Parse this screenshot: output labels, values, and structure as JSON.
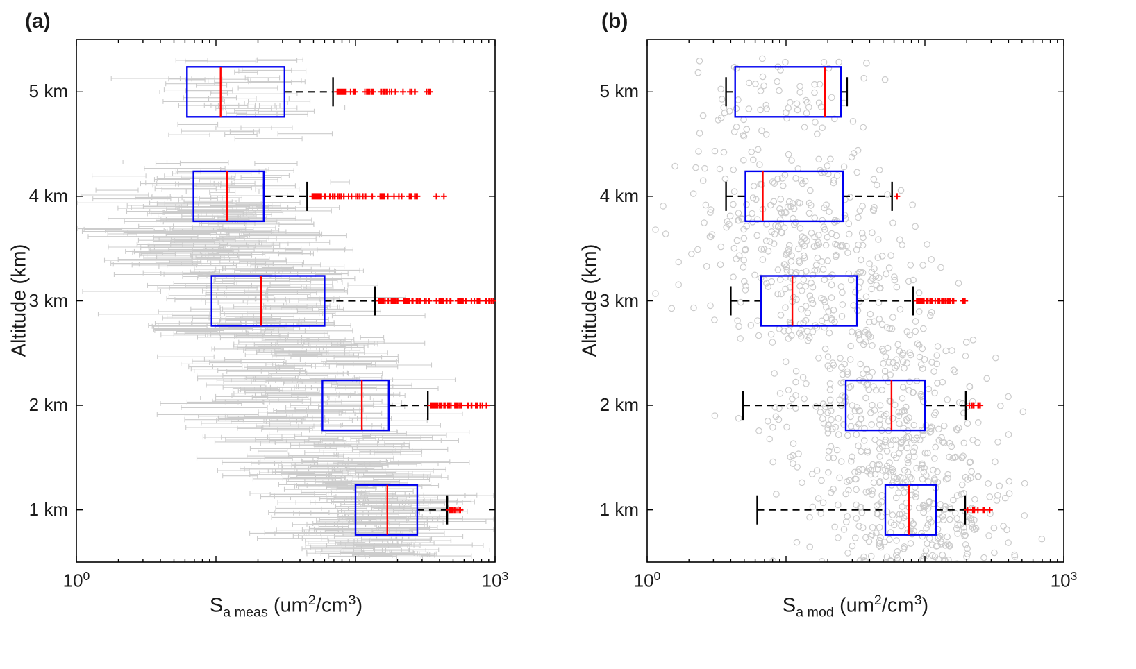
{
  "colors": {
    "box": "#0000f0",
    "median": "#ff0000",
    "whisker": "#000000",
    "outlier": "#ff0000",
    "axis": "#000000",
    "tick_text": "#262626",
    "scatter_a": "#cccccc",
    "scatter_b": "#cbcbcb",
    "background": "#ffffff"
  },
  "chart_data": [
    {
      "type": "boxplot",
      "orientation": "horizontal",
      "panel_label": "(a)",
      "xlabel_text": "S_a meas (um^2/cm^3)",
      "xlabel_parts": {
        "s": "S",
        "sub": "a meas",
        "unit1": " (um",
        "sup1": "2",
        "unit2": "/cm",
        "sup2": "3",
        "unit3": ")"
      },
      "ylabel": "Altitude (km)",
      "x_scale": "log10",
      "xlim": [
        1,
        1000
      ],
      "ylim_km": [
        0.5,
        5.5
      ],
      "grid": false,
      "xtick_labels": [
        {
          "value": 1,
          "base": "10",
          "exp": "0"
        },
        {
          "value": 1000,
          "base": "10",
          "exp": "3"
        }
      ],
      "xtick_marks": [
        1,
        10,
        100,
        1000
      ],
      "ytick_labels": [
        {
          "value": 1,
          "label": "1 km"
        },
        {
          "value": 2,
          "label": "2 km"
        },
        {
          "value": 3,
          "label": "3 km"
        },
        {
          "value": 4,
          "label": "4 km"
        },
        {
          "value": 5,
          "label": "5 km"
        }
      ],
      "boxes": [
        {
          "altitude_km": 5,
          "q1": 6.2,
          "median": 10.8,
          "q3": 31,
          "whisker_low": null,
          "whisker_high": 69,
          "outliers": {
            "min": 74,
            "max": 355,
            "count": 45,
            "extras": []
          }
        },
        {
          "altitude_km": 4,
          "q1": 6.9,
          "median": 12,
          "q3": 22,
          "whisker_low": null,
          "whisker_high": 45,
          "outliers": {
            "min": 49,
            "max": 310,
            "count": 65,
            "extras": [
              380,
              430
            ]
          }
        },
        {
          "altitude_km": 3,
          "q1": 9.3,
          "median": 21,
          "q3": 60,
          "whisker_low": null,
          "whisker_high": 138,
          "outliers": {
            "min": 146,
            "max": 980,
            "count": 80,
            "extras": []
          }
        },
        {
          "altitude_km": 2,
          "q1": 58,
          "median": 111,
          "q3": 173,
          "whisker_low": null,
          "whisker_high": 330,
          "outliers": {
            "min": 344,
            "max": 950,
            "count": 55,
            "extras": []
          }
        },
        {
          "altitude_km": 1,
          "q1": 100,
          "median": 169,
          "q3": 277,
          "whisker_low": null,
          "whisker_high": 454,
          "outliers": {
            "min": 470,
            "max": 565,
            "count": 12,
            "extras": []
          }
        }
      ],
      "background_scatter": {
        "marker": "errorbar-horizontal",
        "color": "#cccccc",
        "seed": 11,
        "bands": [
          {
            "alt_km": [
              4.55,
              5.32
            ],
            "log10_mean": 1.15,
            "log10_sd": 0.22,
            "count": 55,
            "halfwidth_log10": [
              0.06,
              0.28
            ]
          },
          {
            "alt_km": [
              3.95,
              4.35
            ],
            "log10_mean": 0.95,
            "log10_sd": 0.3,
            "count": 45,
            "halfwidth_log10": [
              0.06,
              0.3
            ]
          },
          {
            "alt_km": [
              3.35,
              3.95
            ],
            "log10_mean": 1.0,
            "log10_sd": 0.33,
            "count": 150,
            "halfwidth_log10": [
              0.08,
              0.4
            ]
          },
          {
            "alt_km": [
              2.65,
              3.35
            ],
            "log10_mean": 1.25,
            "log10_sd": 0.35,
            "count": 150,
            "halfwidth_log10": [
              0.08,
              0.4
            ]
          },
          {
            "alt_km": [
              1.75,
              2.65
            ],
            "log10_mean": 1.6,
            "log10_sd": 0.35,
            "count": 190,
            "halfwidth_log10": [
              0.08,
              0.4
            ]
          },
          {
            "alt_km": [
              1.15,
              1.75
            ],
            "log10_mean": 1.9,
            "log10_sd": 0.3,
            "count": 140,
            "halfwidth_log10": [
              0.08,
              0.35
            ]
          },
          {
            "alt_km": [
              0.55,
              1.15
            ],
            "log10_mean": 2.15,
            "log10_sd": 0.28,
            "count": 170,
            "halfwidth_log10": [
              0.08,
              0.35
            ]
          }
        ]
      }
    },
    {
      "type": "boxplot",
      "orientation": "horizontal",
      "panel_label": "(b)",
      "xlabel_text": "S_a mod (um^2/cm^3)",
      "xlabel_parts": {
        "s": "S",
        "sub": "a mod",
        "unit1": " (um",
        "sup1": "2",
        "unit2": "/cm",
        "sup2": "3",
        "unit3": ")"
      },
      "ylabel": "Altitude (km)",
      "x_scale": "log10",
      "xlim": [
        1,
        1000
      ],
      "ylim_km": [
        0.5,
        5.5
      ],
      "grid": false,
      "xtick_labels": [
        {
          "value": 1,
          "base": "10",
          "exp": "0"
        },
        {
          "value": 1000,
          "base": "10",
          "exp": "3"
        }
      ],
      "xtick_marks": [
        1,
        10,
        100,
        1000
      ],
      "ytick_labels": [
        {
          "value": 1,
          "label": "1 km"
        },
        {
          "value": 2,
          "label": "2 km"
        },
        {
          "value": 3,
          "label": "3 km"
        },
        {
          "value": 4,
          "label": "4 km"
        },
        {
          "value": 5,
          "label": "5 km"
        }
      ],
      "boxes": [
        {
          "altitude_km": 5,
          "q1": 4.3,
          "median": 19,
          "q3": 24.8,
          "whisker_low": 3.7,
          "whisker_high": 27.5,
          "outliers": {
            "min": 0,
            "max": 0,
            "count": 0,
            "extras": []
          }
        },
        {
          "altitude_km": 4,
          "q1": 5.1,
          "median": 6.8,
          "q3": 25.7,
          "whisker_low": 3.7,
          "whisker_high": 58,
          "outliers": {
            "min": 0,
            "max": 0,
            "count": 0,
            "extras": [
              63
            ]
          }
        },
        {
          "altitude_km": 3,
          "q1": 6.6,
          "median": 11.1,
          "q3": 32.4,
          "whisker_low": 4.0,
          "whisker_high": 82,
          "outliers": {
            "min": 87,
            "max": 205,
            "count": 42,
            "extras": []
          }
        },
        {
          "altitude_km": 2,
          "q1": 26.9,
          "median": 57.5,
          "q3": 100,
          "whisker_low": 4.9,
          "whisker_high": 197,
          "outliers": {
            "min": 207,
            "max": 272,
            "count": 9,
            "extras": []
          }
        },
        {
          "altitude_km": 1,
          "q1": 51.9,
          "median": 76.7,
          "q3": 120,
          "whisker_low": 6.2,
          "whisker_high": 195,
          "outliers": {
            "min": 200,
            "max": 300,
            "count": 12,
            "extras": []
          }
        }
      ],
      "background_scatter": {
        "marker": "circle",
        "color": "#cbcbcb",
        "seed": 12,
        "bands": [
          {
            "alt_km": [
              4.55,
              5.32
            ],
            "log10_mean": 1.0,
            "log10_sd": 0.3,
            "count": 70
          },
          {
            "alt_km": [
              3.95,
              4.45
            ],
            "log10_mean": 1.0,
            "log10_sd": 0.35,
            "count": 60
          },
          {
            "alt_km": [
              3.35,
              3.95
            ],
            "log10_mean": 1.05,
            "log10_sd": 0.38,
            "count": 160
          },
          {
            "alt_km": [
              2.65,
              3.35
            ],
            "log10_mean": 1.3,
            "log10_sd": 0.4,
            "count": 170
          },
          {
            "alt_km": [
              1.75,
              2.65
            ],
            "log10_mean": 1.65,
            "log10_sd": 0.38,
            "count": 220
          },
          {
            "alt_km": [
              1.15,
              1.75
            ],
            "log10_mean": 1.85,
            "log10_sd": 0.35,
            "count": 180
          },
          {
            "alt_km": [
              0.45,
              1.15
            ],
            "log10_mean": 1.95,
            "log10_sd": 0.35,
            "count": 200
          }
        ]
      }
    }
  ]
}
